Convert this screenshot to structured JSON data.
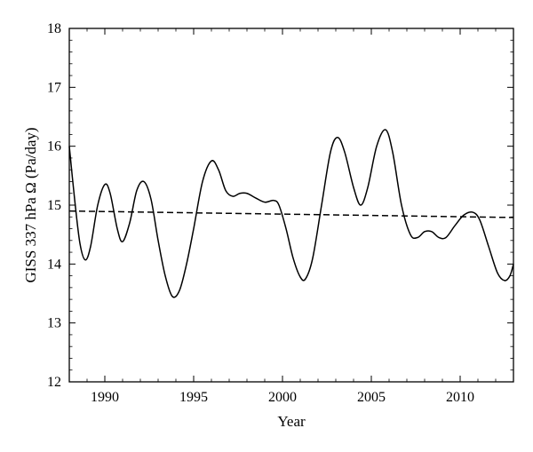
{
  "chart_data": {
    "type": "line",
    "title": "",
    "xlabel": "Year",
    "ylabel": "GISS 337 hPa Ω (Pa/day)",
    "xlim": [
      1988,
      2013
    ],
    "ylim": [
      12,
      18
    ],
    "xticks": [
      1990,
      1995,
      2000,
      2005,
      2010
    ],
    "yticks": [
      12,
      13,
      14,
      15,
      16,
      17,
      18
    ],
    "grid": false,
    "legend": "none",
    "series": [
      {
        "style": "solid",
        "color": "#000000",
        "points": [
          [
            1988.0,
            16.0
          ],
          [
            1988.3,
            15.1
          ],
          [
            1988.6,
            14.35
          ],
          [
            1988.9,
            14.07
          ],
          [
            1989.2,
            14.3
          ],
          [
            1989.6,
            15.0
          ],
          [
            1990.0,
            15.35
          ],
          [
            1990.3,
            15.2
          ],
          [
            1990.7,
            14.6
          ],
          [
            1991.0,
            14.38
          ],
          [
            1991.4,
            14.7
          ],
          [
            1991.8,
            15.25
          ],
          [
            1992.2,
            15.4
          ],
          [
            1992.6,
            15.1
          ],
          [
            1993.0,
            14.4
          ],
          [
            1993.4,
            13.8
          ],
          [
            1993.8,
            13.45
          ],
          [
            1994.2,
            13.55
          ],
          [
            1994.6,
            14.0
          ],
          [
            1995.0,
            14.6
          ],
          [
            1995.5,
            15.4
          ],
          [
            1996.0,
            15.75
          ],
          [
            1996.4,
            15.6
          ],
          [
            1996.8,
            15.25
          ],
          [
            1997.2,
            15.15
          ],
          [
            1997.6,
            15.2
          ],
          [
            1998.0,
            15.2
          ],
          [
            1998.5,
            15.12
          ],
          [
            1999.0,
            15.05
          ],
          [
            1999.5,
            15.08
          ],
          [
            1999.8,
            15.0
          ],
          [
            2000.2,
            14.6
          ],
          [
            2000.6,
            14.1
          ],
          [
            2001.0,
            13.78
          ],
          [
            2001.3,
            13.75
          ],
          [
            2001.7,
            14.1
          ],
          [
            2002.2,
            15.0
          ],
          [
            2002.7,
            15.9
          ],
          [
            2003.1,
            16.15
          ],
          [
            2003.5,
            15.9
          ],
          [
            2004.0,
            15.3
          ],
          [
            2004.4,
            15.0
          ],
          [
            2004.8,
            15.3
          ],
          [
            2005.3,
            16.0
          ],
          [
            2005.8,
            16.28
          ],
          [
            2006.2,
            15.9
          ],
          [
            2006.7,
            15.0
          ],
          [
            2007.2,
            14.5
          ],
          [
            2007.6,
            14.45
          ],
          [
            2008.0,
            14.55
          ],
          [
            2008.4,
            14.55
          ],
          [
            2008.8,
            14.45
          ],
          [
            2009.2,
            14.45
          ],
          [
            2009.7,
            14.65
          ],
          [
            2010.2,
            14.83
          ],
          [
            2010.7,
            14.88
          ],
          [
            2011.1,
            14.75
          ],
          [
            2011.6,
            14.3
          ],
          [
            2012.1,
            13.85
          ],
          [
            2012.5,
            13.72
          ],
          [
            2012.8,
            13.8
          ],
          [
            2013.0,
            14.0
          ]
        ]
      },
      {
        "style": "dashed",
        "color": "#000000",
        "points": [
          [
            1988.0,
            14.9
          ],
          [
            2013.0,
            14.79
          ]
        ]
      }
    ]
  }
}
